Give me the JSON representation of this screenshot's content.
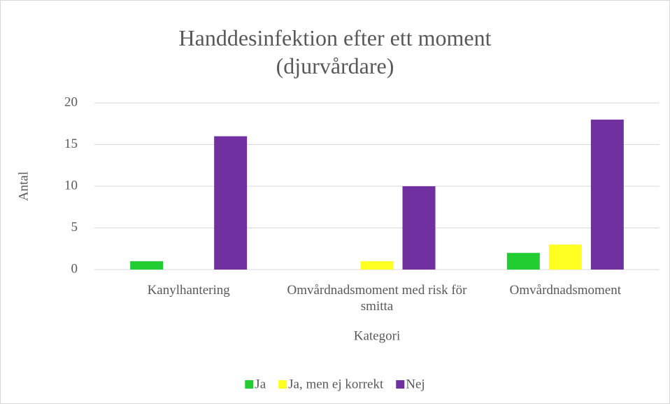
{
  "chart_data": {
    "type": "bar",
    "title": "Handdesinfektion efter ett moment (djurvårdare)",
    "x_label": "Kategori",
    "y_label": "Antal",
    "categories": [
      "Kanylhantering",
      "Omvårdnadsmoment med risk för smitta",
      "Omvårdnadsmoment"
    ],
    "series": [
      {
        "name": "Ja",
        "color": "#22cc33",
        "values": [
          1,
          0,
          2
        ]
      },
      {
        "name": "Ja, men ej korrekt",
        "color": "#ffff22",
        "values": [
          0,
          1,
          3
        ]
      },
      {
        "name": "Nej",
        "color": "#7030a0",
        "values": [
          16,
          10,
          18
        ]
      }
    ],
    "ylim": [
      0,
      20
    ],
    "yticks": [
      0,
      5,
      10,
      15,
      20
    ],
    "grid": true,
    "legend": "bottom"
  }
}
